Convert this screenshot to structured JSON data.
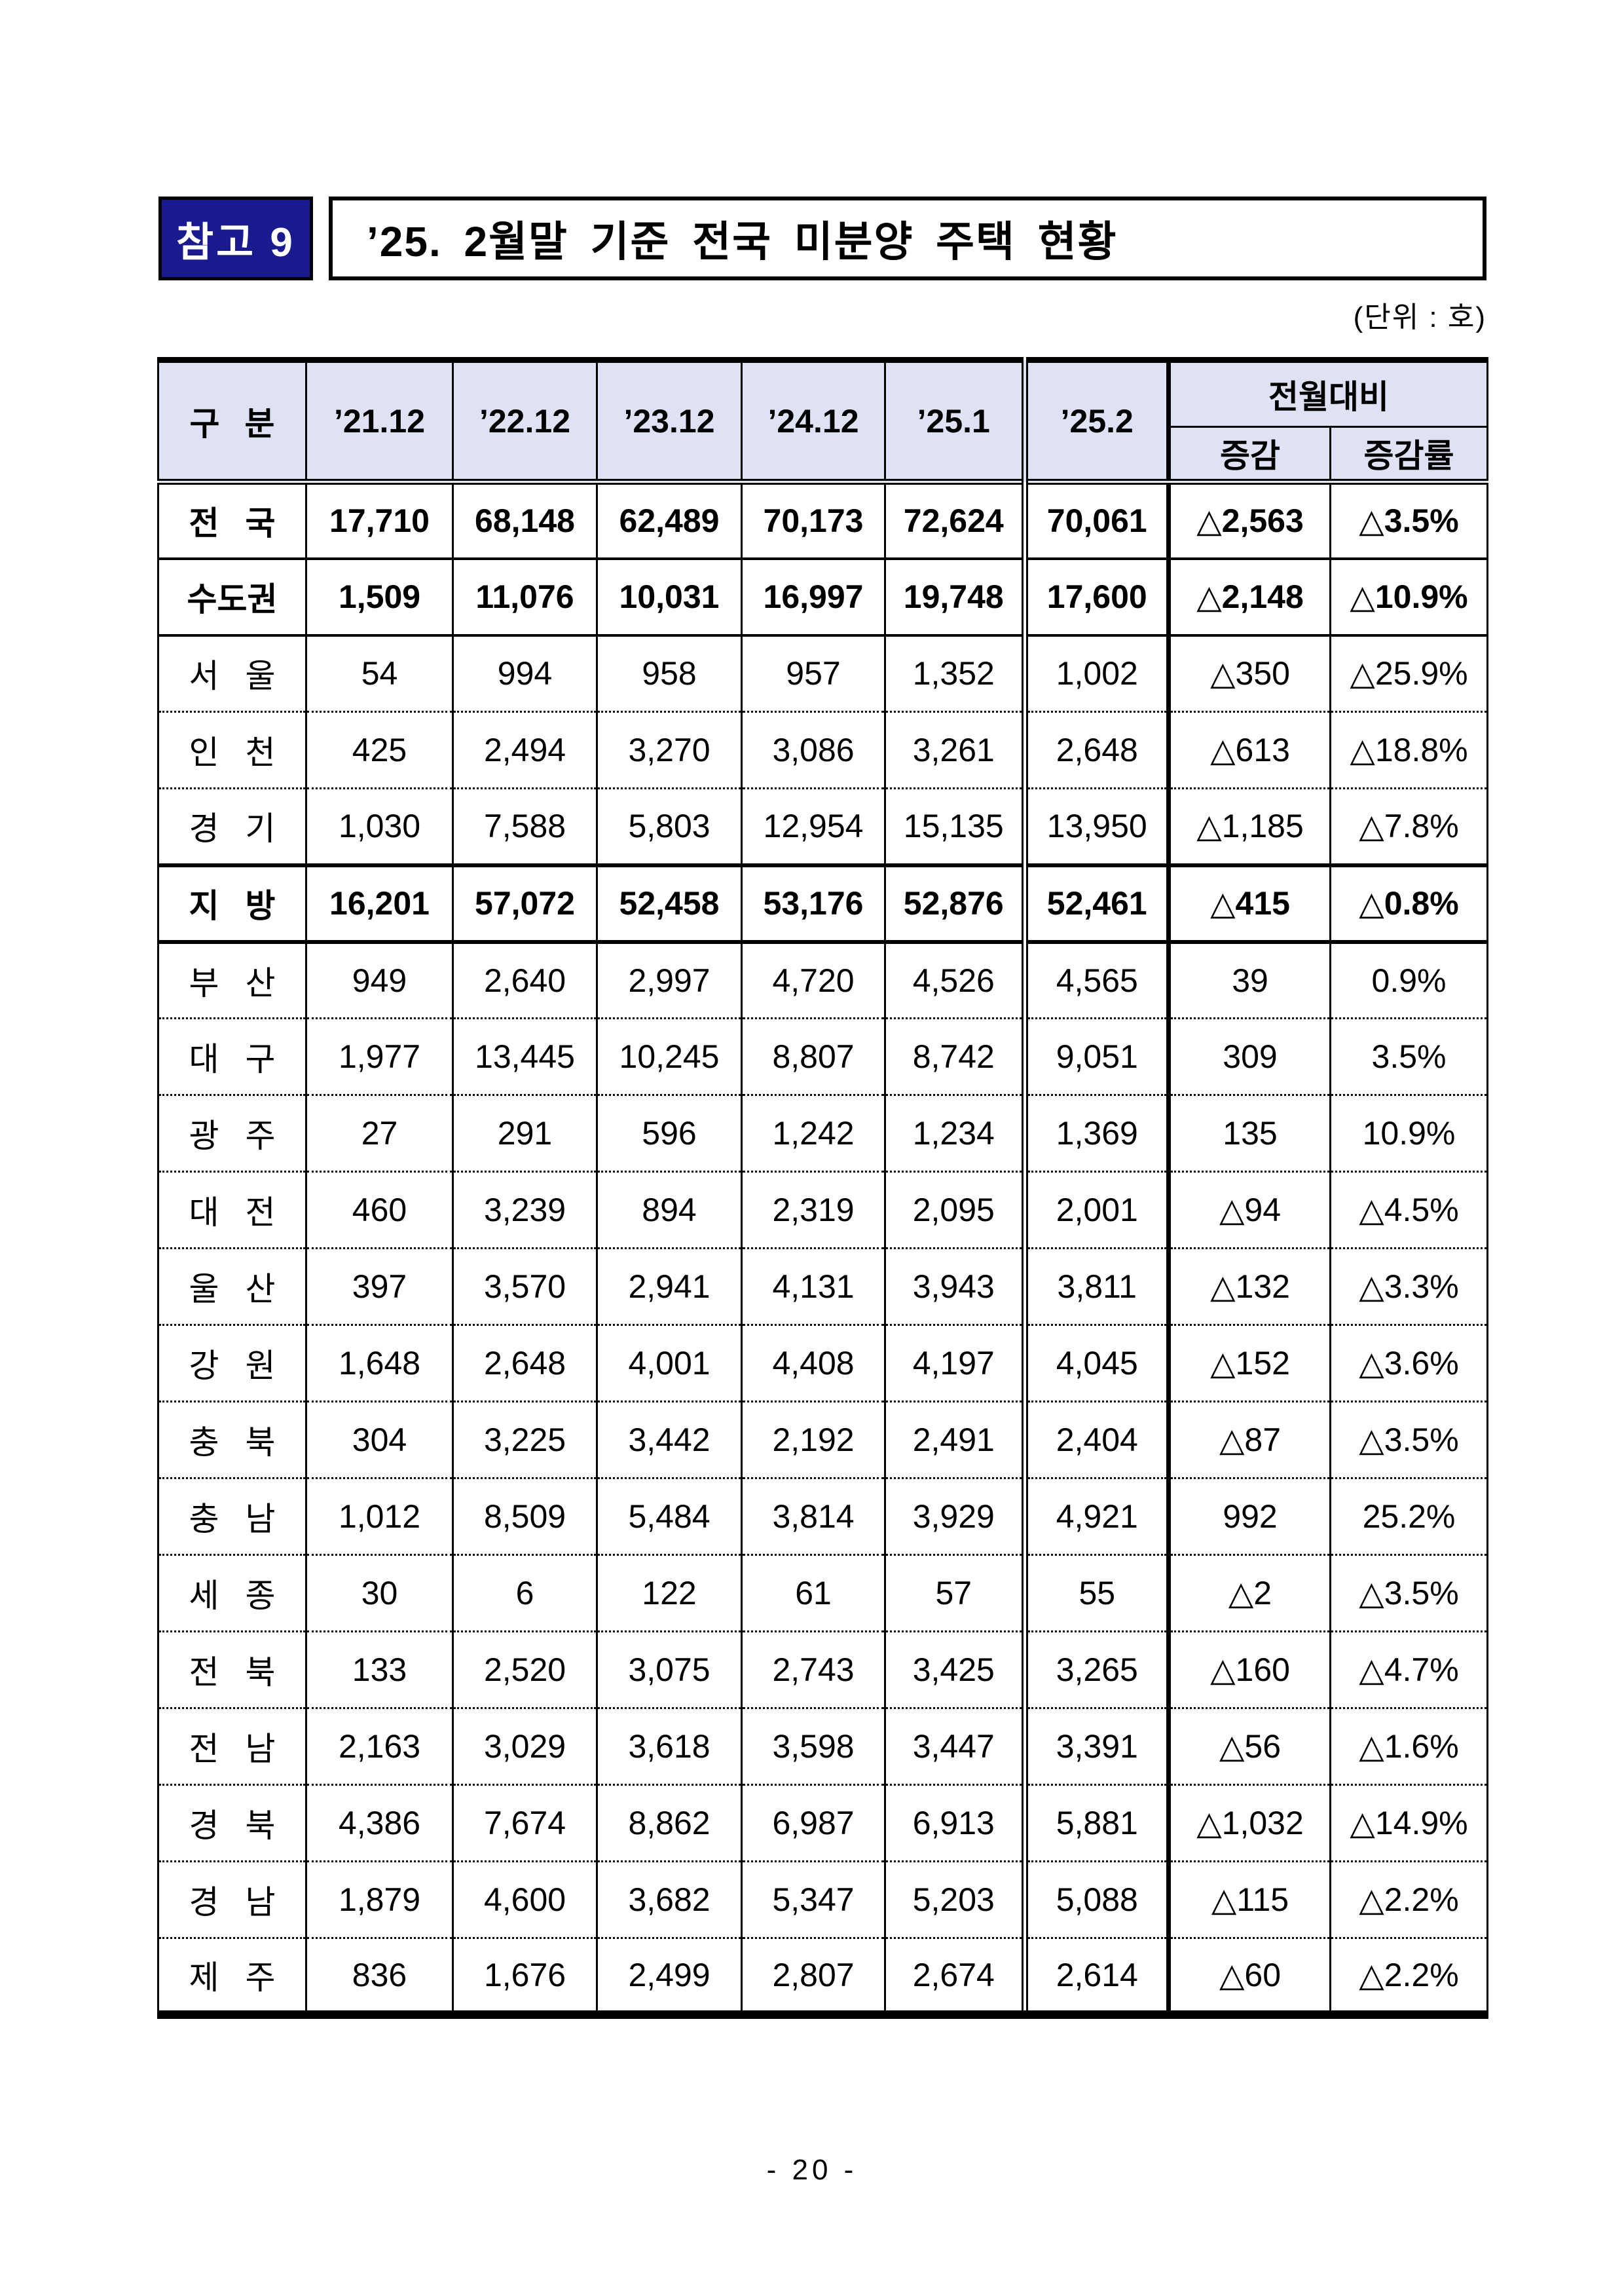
{
  "header": {
    "badge": "참고 9",
    "title": "’25. 2월말 기준 전국 미분양 주택 현황",
    "unit_label": "(단위 : 호)"
  },
  "table": {
    "columns": [
      "구 분",
      "’21.12",
      "’22.12",
      "’23.12",
      "’24.12",
      "’25.1",
      "’25.2"
    ],
    "group_header": "전월대비",
    "sub_columns": [
      "증감",
      "증감률"
    ],
    "rows": [
      {
        "region": "전 국",
        "bold": true,
        "sep": "solid",
        "values": [
          "17,710",
          "68,148",
          "62,489",
          "70,173",
          "72,624",
          "70,061",
          "△2,563",
          "△3.5%"
        ]
      },
      {
        "region": "수도권",
        "bold": true,
        "sep": "solid",
        "values": [
          "1,509",
          "11,076",
          "10,031",
          "16,997",
          "19,748",
          "17,600",
          "△2,148",
          "△10.9%"
        ]
      },
      {
        "region": "서 울",
        "bold": false,
        "sep": "dotted",
        "values": [
          "54",
          "994",
          "958",
          "957",
          "1,352",
          "1,002",
          "△350",
          "△25.9%"
        ]
      },
      {
        "region": "인 천",
        "bold": false,
        "sep": "dotted",
        "values": [
          "425",
          "2,494",
          "3,270",
          "3,086",
          "3,261",
          "2,648",
          "△613",
          "△18.8%"
        ]
      },
      {
        "region": "경 기",
        "bold": false,
        "sep": "thick",
        "values": [
          "1,030",
          "7,588",
          "5,803",
          "12,954",
          "15,135",
          "13,950",
          "△1,185",
          "△7.8%"
        ]
      },
      {
        "region": "지 방",
        "bold": true,
        "sep": "thick",
        "values": [
          "16,201",
          "57,072",
          "52,458",
          "53,176",
          "52,876",
          "52,461",
          "△415",
          "△0.8%"
        ]
      },
      {
        "region": "부 산",
        "bold": false,
        "sep": "dotted",
        "values": [
          "949",
          "2,640",
          "2,997",
          "4,720",
          "4,526",
          "4,565",
          "39",
          "0.9%"
        ]
      },
      {
        "region": "대 구",
        "bold": false,
        "sep": "dotted",
        "values": [
          "1,977",
          "13,445",
          "10,245",
          "8,807",
          "8,742",
          "9,051",
          "309",
          "3.5%"
        ]
      },
      {
        "region": "광 주",
        "bold": false,
        "sep": "dotted",
        "values": [
          "27",
          "291",
          "596",
          "1,242",
          "1,234",
          "1,369",
          "135",
          "10.9%"
        ]
      },
      {
        "region": "대 전",
        "bold": false,
        "sep": "dotted",
        "values": [
          "460",
          "3,239",
          "894",
          "2,319",
          "2,095",
          "2,001",
          "△94",
          "△4.5%"
        ]
      },
      {
        "region": "울 산",
        "bold": false,
        "sep": "dotted",
        "values": [
          "397",
          "3,570",
          "2,941",
          "4,131",
          "3,943",
          "3,811",
          "△132",
          "△3.3%"
        ]
      },
      {
        "region": "강 원",
        "bold": false,
        "sep": "dotted",
        "values": [
          "1,648",
          "2,648",
          "4,001",
          "4,408",
          "4,197",
          "4,045",
          "△152",
          "△3.6%"
        ]
      },
      {
        "region": "충 북",
        "bold": false,
        "sep": "dotted",
        "values": [
          "304",
          "3,225",
          "3,442",
          "2,192",
          "2,491",
          "2,404",
          "△87",
          "△3.5%"
        ]
      },
      {
        "region": "충 남",
        "bold": false,
        "sep": "dotted",
        "values": [
          "1,012",
          "8,509",
          "5,484",
          "3,814",
          "3,929",
          "4,921",
          "992",
          "25.2%"
        ]
      },
      {
        "region": "세 종",
        "bold": false,
        "sep": "dotted",
        "values": [
          "30",
          "6",
          "122",
          "61",
          "57",
          "55",
          "△2",
          "△3.5%"
        ]
      },
      {
        "region": "전 북",
        "bold": false,
        "sep": "dotted",
        "values": [
          "133",
          "2,520",
          "3,075",
          "2,743",
          "3,425",
          "3,265",
          "△160",
          "△4.7%"
        ]
      },
      {
        "region": "전 남",
        "bold": false,
        "sep": "dotted",
        "values": [
          "2,163",
          "3,029",
          "3,618",
          "3,598",
          "3,447",
          "3,391",
          "△56",
          "△1.6%"
        ]
      },
      {
        "region": "경 북",
        "bold": false,
        "sep": "dotted",
        "values": [
          "4,386",
          "7,674",
          "8,862",
          "6,987",
          "6,913",
          "5,881",
          "△1,032",
          "△14.9%"
        ]
      },
      {
        "region": "경 남",
        "bold": false,
        "sep": "dotted",
        "values": [
          "1,879",
          "4,600",
          "3,682",
          "5,347",
          "5,203",
          "5,088",
          "△115",
          "△2.2%"
        ]
      },
      {
        "region": "제 주",
        "bold": false,
        "sep": "none",
        "values": [
          "836",
          "1,676",
          "2,499",
          "2,807",
          "2,674",
          "2,614",
          "△60",
          "△2.2%"
        ]
      }
    ]
  },
  "footer": {
    "page_number": "- 20 -"
  },
  "colors": {
    "badge_bg": "#1a1a8f",
    "header_bg": "#dfe2f4",
    "border": "#000000"
  }
}
